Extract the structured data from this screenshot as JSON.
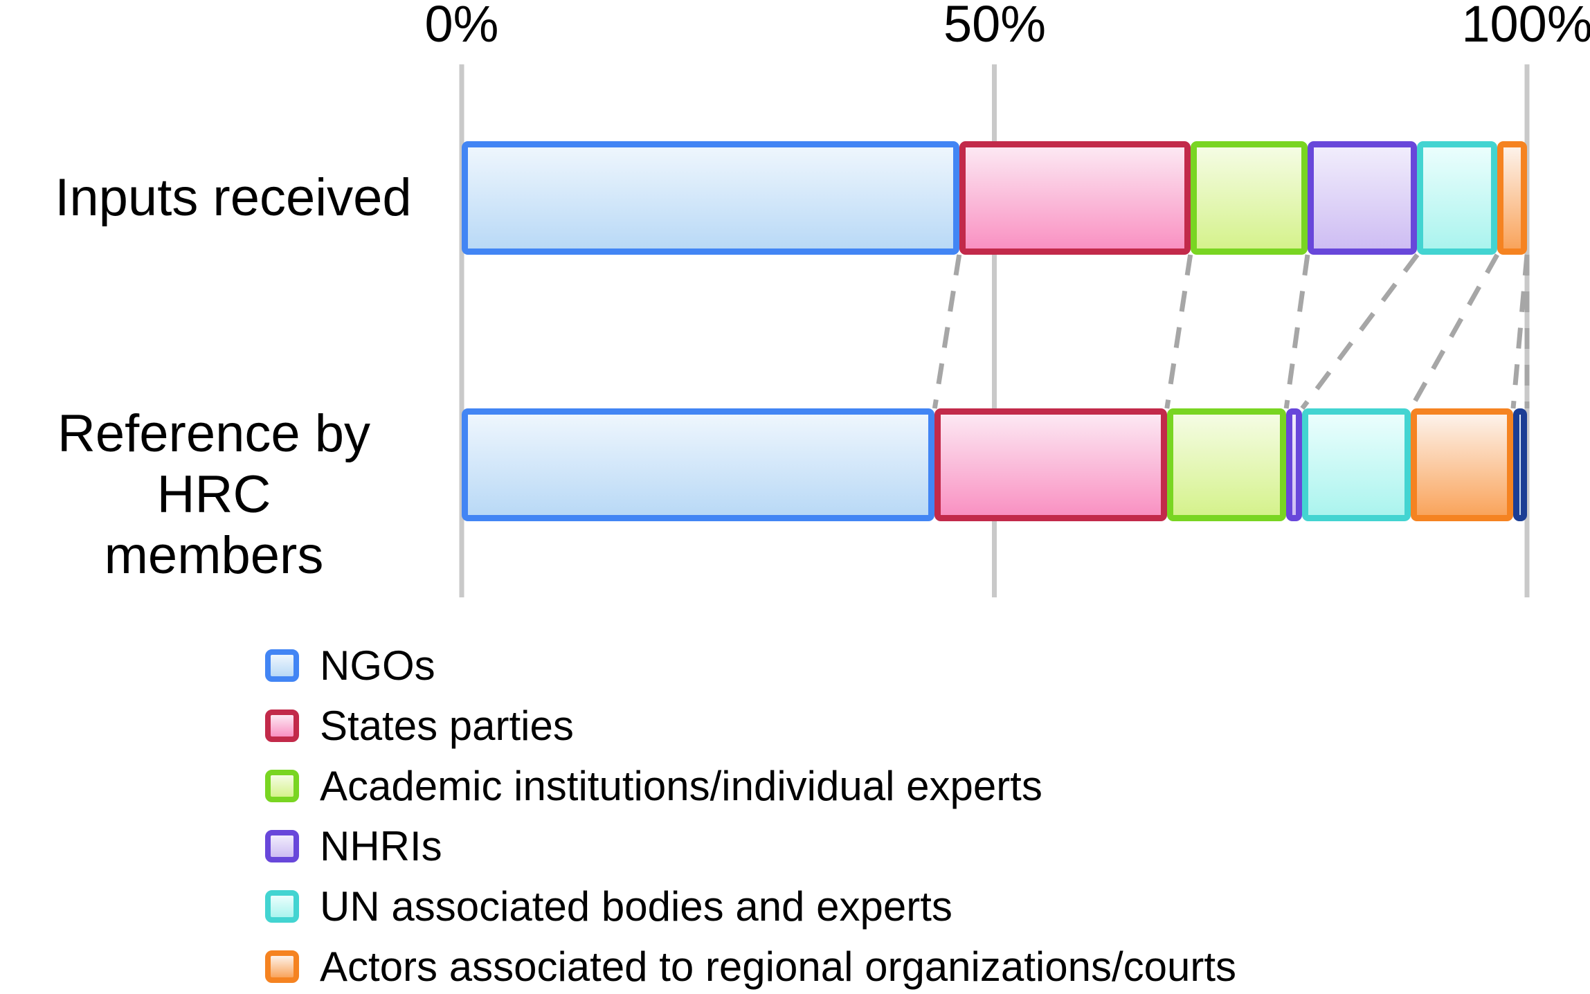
{
  "axis": {
    "ticks": [
      "0%",
      "50%",
      "100%"
    ],
    "tick_positions_pct": [
      0,
      50,
      100
    ]
  },
  "row_labels": [
    {
      "text": "Inputs received",
      "lines": [
        "Inputs received"
      ]
    },
    {
      "text": "Reference by HRC members",
      "lines": [
        "Reference by HRC",
        "members"
      ]
    }
  ],
  "colors": {
    "gridline": "#c9c9c9",
    "connector_dash": "#a6a6a6",
    "text": "#000000",
    "background": "#ffffff"
  },
  "chart_data": {
    "type": "bar",
    "subtype": "horizontal-stacked-100-percent",
    "title": "",
    "xlabel": "",
    "ylabel": "",
    "xlim": [
      0,
      100
    ],
    "grid": "vertical gridlines at 0%, 50%, 100%",
    "legend_position": "bottom-left",
    "connectors": "dashed gray lines join matching segment boundaries of the two bars",
    "categories": [
      "Inputs received",
      "Reference by HRC members"
    ],
    "series": [
      {
        "name": "NGOs",
        "values": [
          46.7,
          44.4
        ],
        "border": "#4285f4",
        "fill_top": "#eef6fd",
        "fill_bottom": "#b9d9f6",
        "in_legend": true
      },
      {
        "name": "States parties",
        "values": [
          21.7,
          21.8
        ],
        "border": "#c22a4a",
        "fill_top": "#fce8f3",
        "fill_bottom": "#f991c2",
        "in_legend": true
      },
      {
        "name": "Academic institutions/individual experts",
        "values": [
          11.0,
          11.2
        ],
        "border": "#79d522",
        "fill_top": "#f5fce4",
        "fill_bottom": "#d5f28c",
        "in_legend": true
      },
      {
        "name": "NHRIs",
        "values": [
          10.3,
          1.5
        ],
        "border": "#6847da",
        "fill_top": "#f1edfc",
        "fill_bottom": "#cebdf3",
        "in_legend": true
      },
      {
        "name": "UN associated bodies and experts",
        "values": [
          7.5,
          10.2
        ],
        "border": "#43d4d1",
        "fill_top": "#ebfefd",
        "fill_bottom": "#abf4ee",
        "in_legend": true
      },
      {
        "name": "Actors associated to regional organizations/courts",
        "values": [
          2.8,
          9.6
        ],
        "border": "#f58321",
        "fill_top": "#fdf2ea",
        "fill_bottom": "#f9a45c",
        "in_legend": true
      },
      {
        "name": "Unlabelled dark blue segment",
        "values": [
          0,
          1.3
        ],
        "border": "#1c3e94",
        "fill_top": "#e3eefa",
        "fill_bottom": "#c3d9f0",
        "in_legend": false
      }
    ]
  }
}
